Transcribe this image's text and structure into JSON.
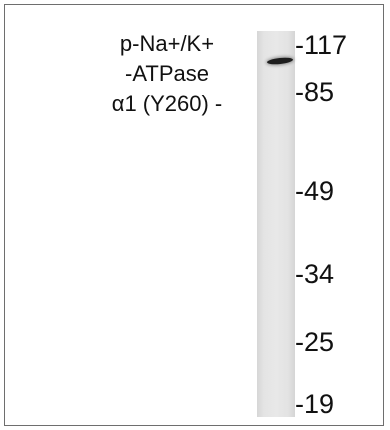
{
  "protein_label": {
    "line1": "p-Na+/K+",
    "line2": "-ATPase",
    "line3": "α1 (Y260) -"
  },
  "markers": [
    "-117",
    "-85",
    "-49",
    "-34",
    "-25",
    "-19"
  ]
}
